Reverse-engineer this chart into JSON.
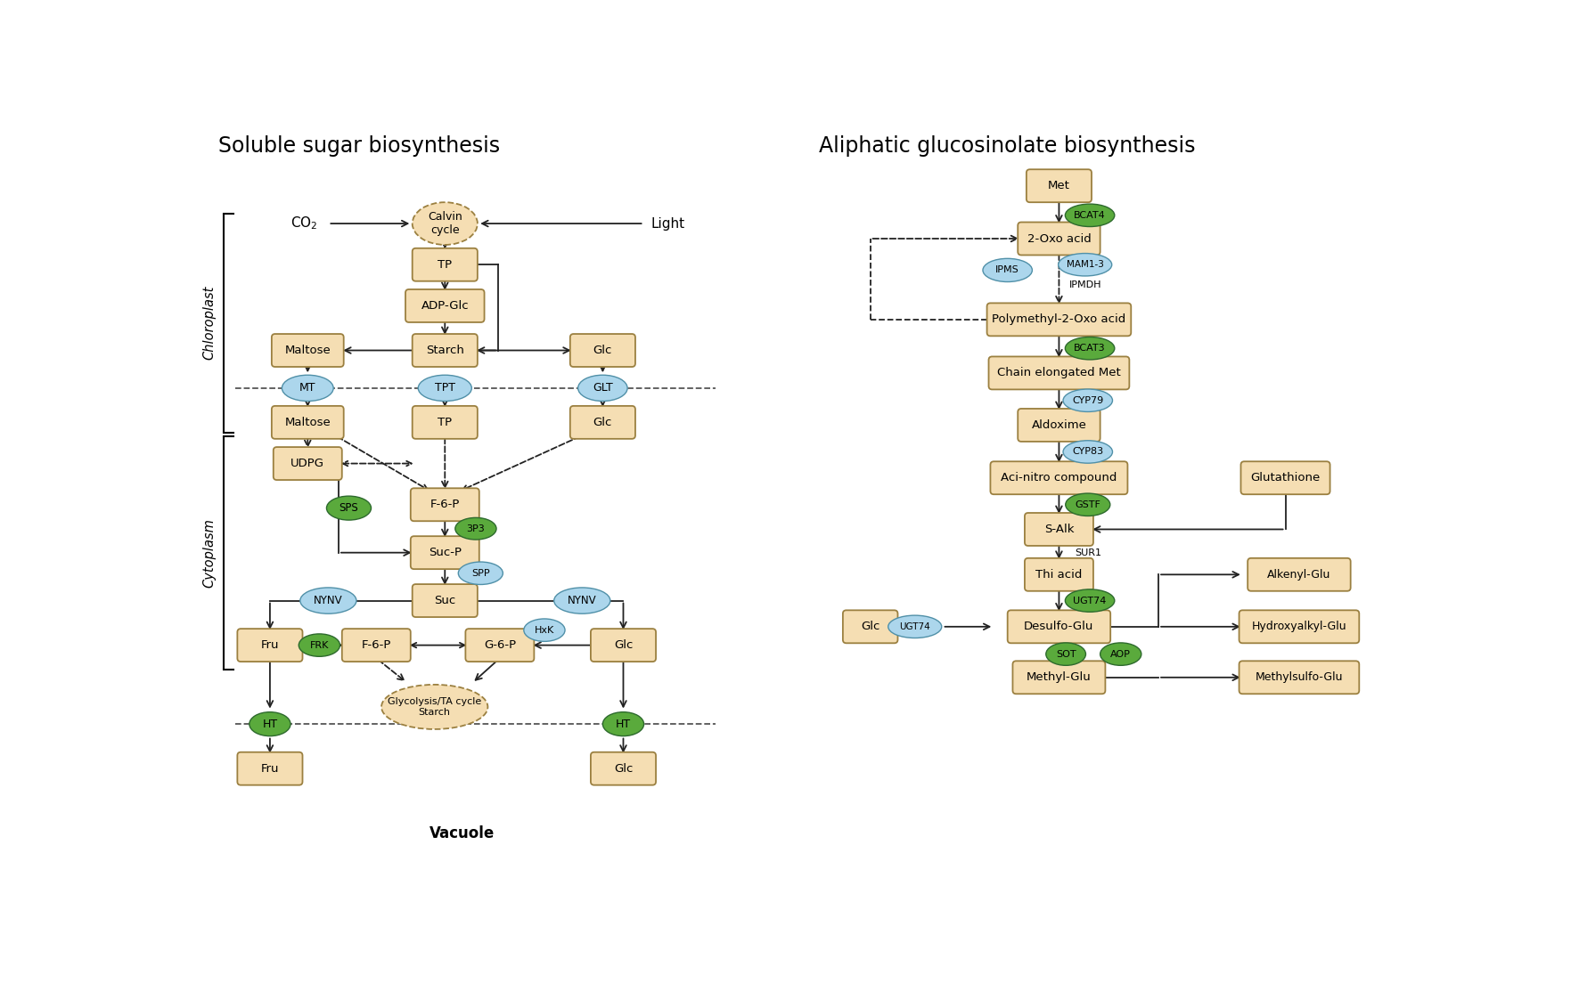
{
  "title_left": "Soluble sugar biosynthesis",
  "title_right": "Aliphatic glucosinolate biosynthesis",
  "box_color": "#F5DEB3",
  "box_edge_color": "#9B8040",
  "blue_ellipse_color": "#ACD6EC",
  "green_ellipse_color": "#5AAA3C",
  "arrow_color": "#222222",
  "bg_color": "#FFFFFF",
  "chloroplast_label": "Chloroplast",
  "cytoplasm_label": "Cytoplasm",
  "vacuole_label": "Vacuole"
}
